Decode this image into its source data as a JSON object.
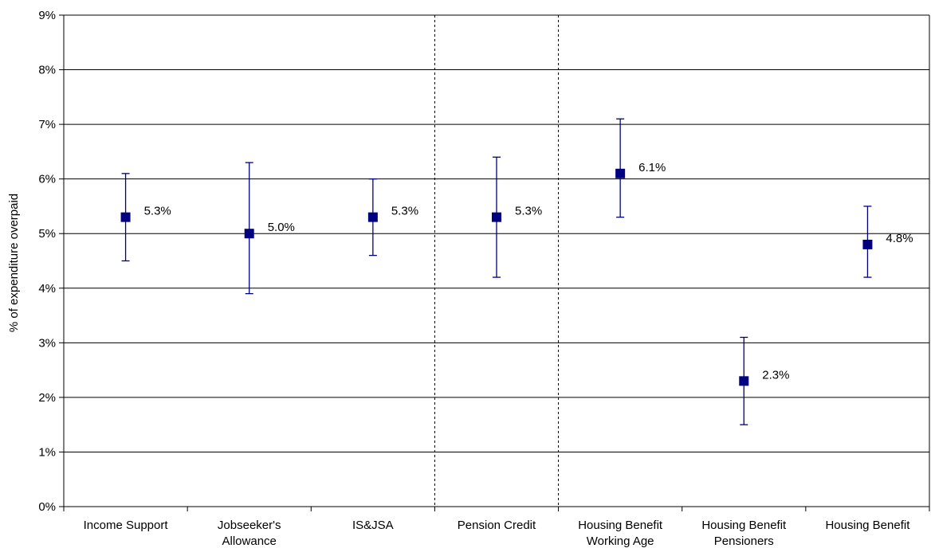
{
  "chart_data": {
    "type": "scatter",
    "title": "",
    "xlabel": "",
    "ylabel": "% of expenditure overpaid",
    "ylim": [
      0,
      9
    ],
    "y_ticks": [
      "0%",
      "1%",
      "2%",
      "3%",
      "4%",
      "5%",
      "6%",
      "7%",
      "8%",
      "9%"
    ],
    "grid": true,
    "categories": [
      [
        "Income Support"
      ],
      [
        "Jobseeker's",
        "Allowance"
      ],
      [
        "IS&JSA"
      ],
      [
        "Pension Credit"
      ],
      [
        "Housing Benefit",
        "Working Age"
      ],
      [
        "Housing Benefit",
        "Pensioners"
      ],
      [
        "Housing Benefit"
      ]
    ],
    "values": [
      5.3,
      5.0,
      5.3,
      5.3,
      6.1,
      2.3,
      4.8
    ],
    "lower": [
      4.5,
      3.9,
      4.6,
      4.2,
      5.3,
      1.5,
      4.2
    ],
    "upper": [
      6.1,
      6.3,
      6.0,
      6.4,
      7.1,
      3.1,
      5.5
    ],
    "data_labels": [
      "5.3%",
      "5.0%",
      "5.3%",
      "5.3%",
      "6.1%",
      "2.3%",
      "4.8%"
    ],
    "group_separators_after": [
      2,
      3
    ],
    "colors": {
      "marker": "#000080",
      "errorbar": "#000080",
      "grid": "#000000",
      "separator": "#000000"
    }
  }
}
